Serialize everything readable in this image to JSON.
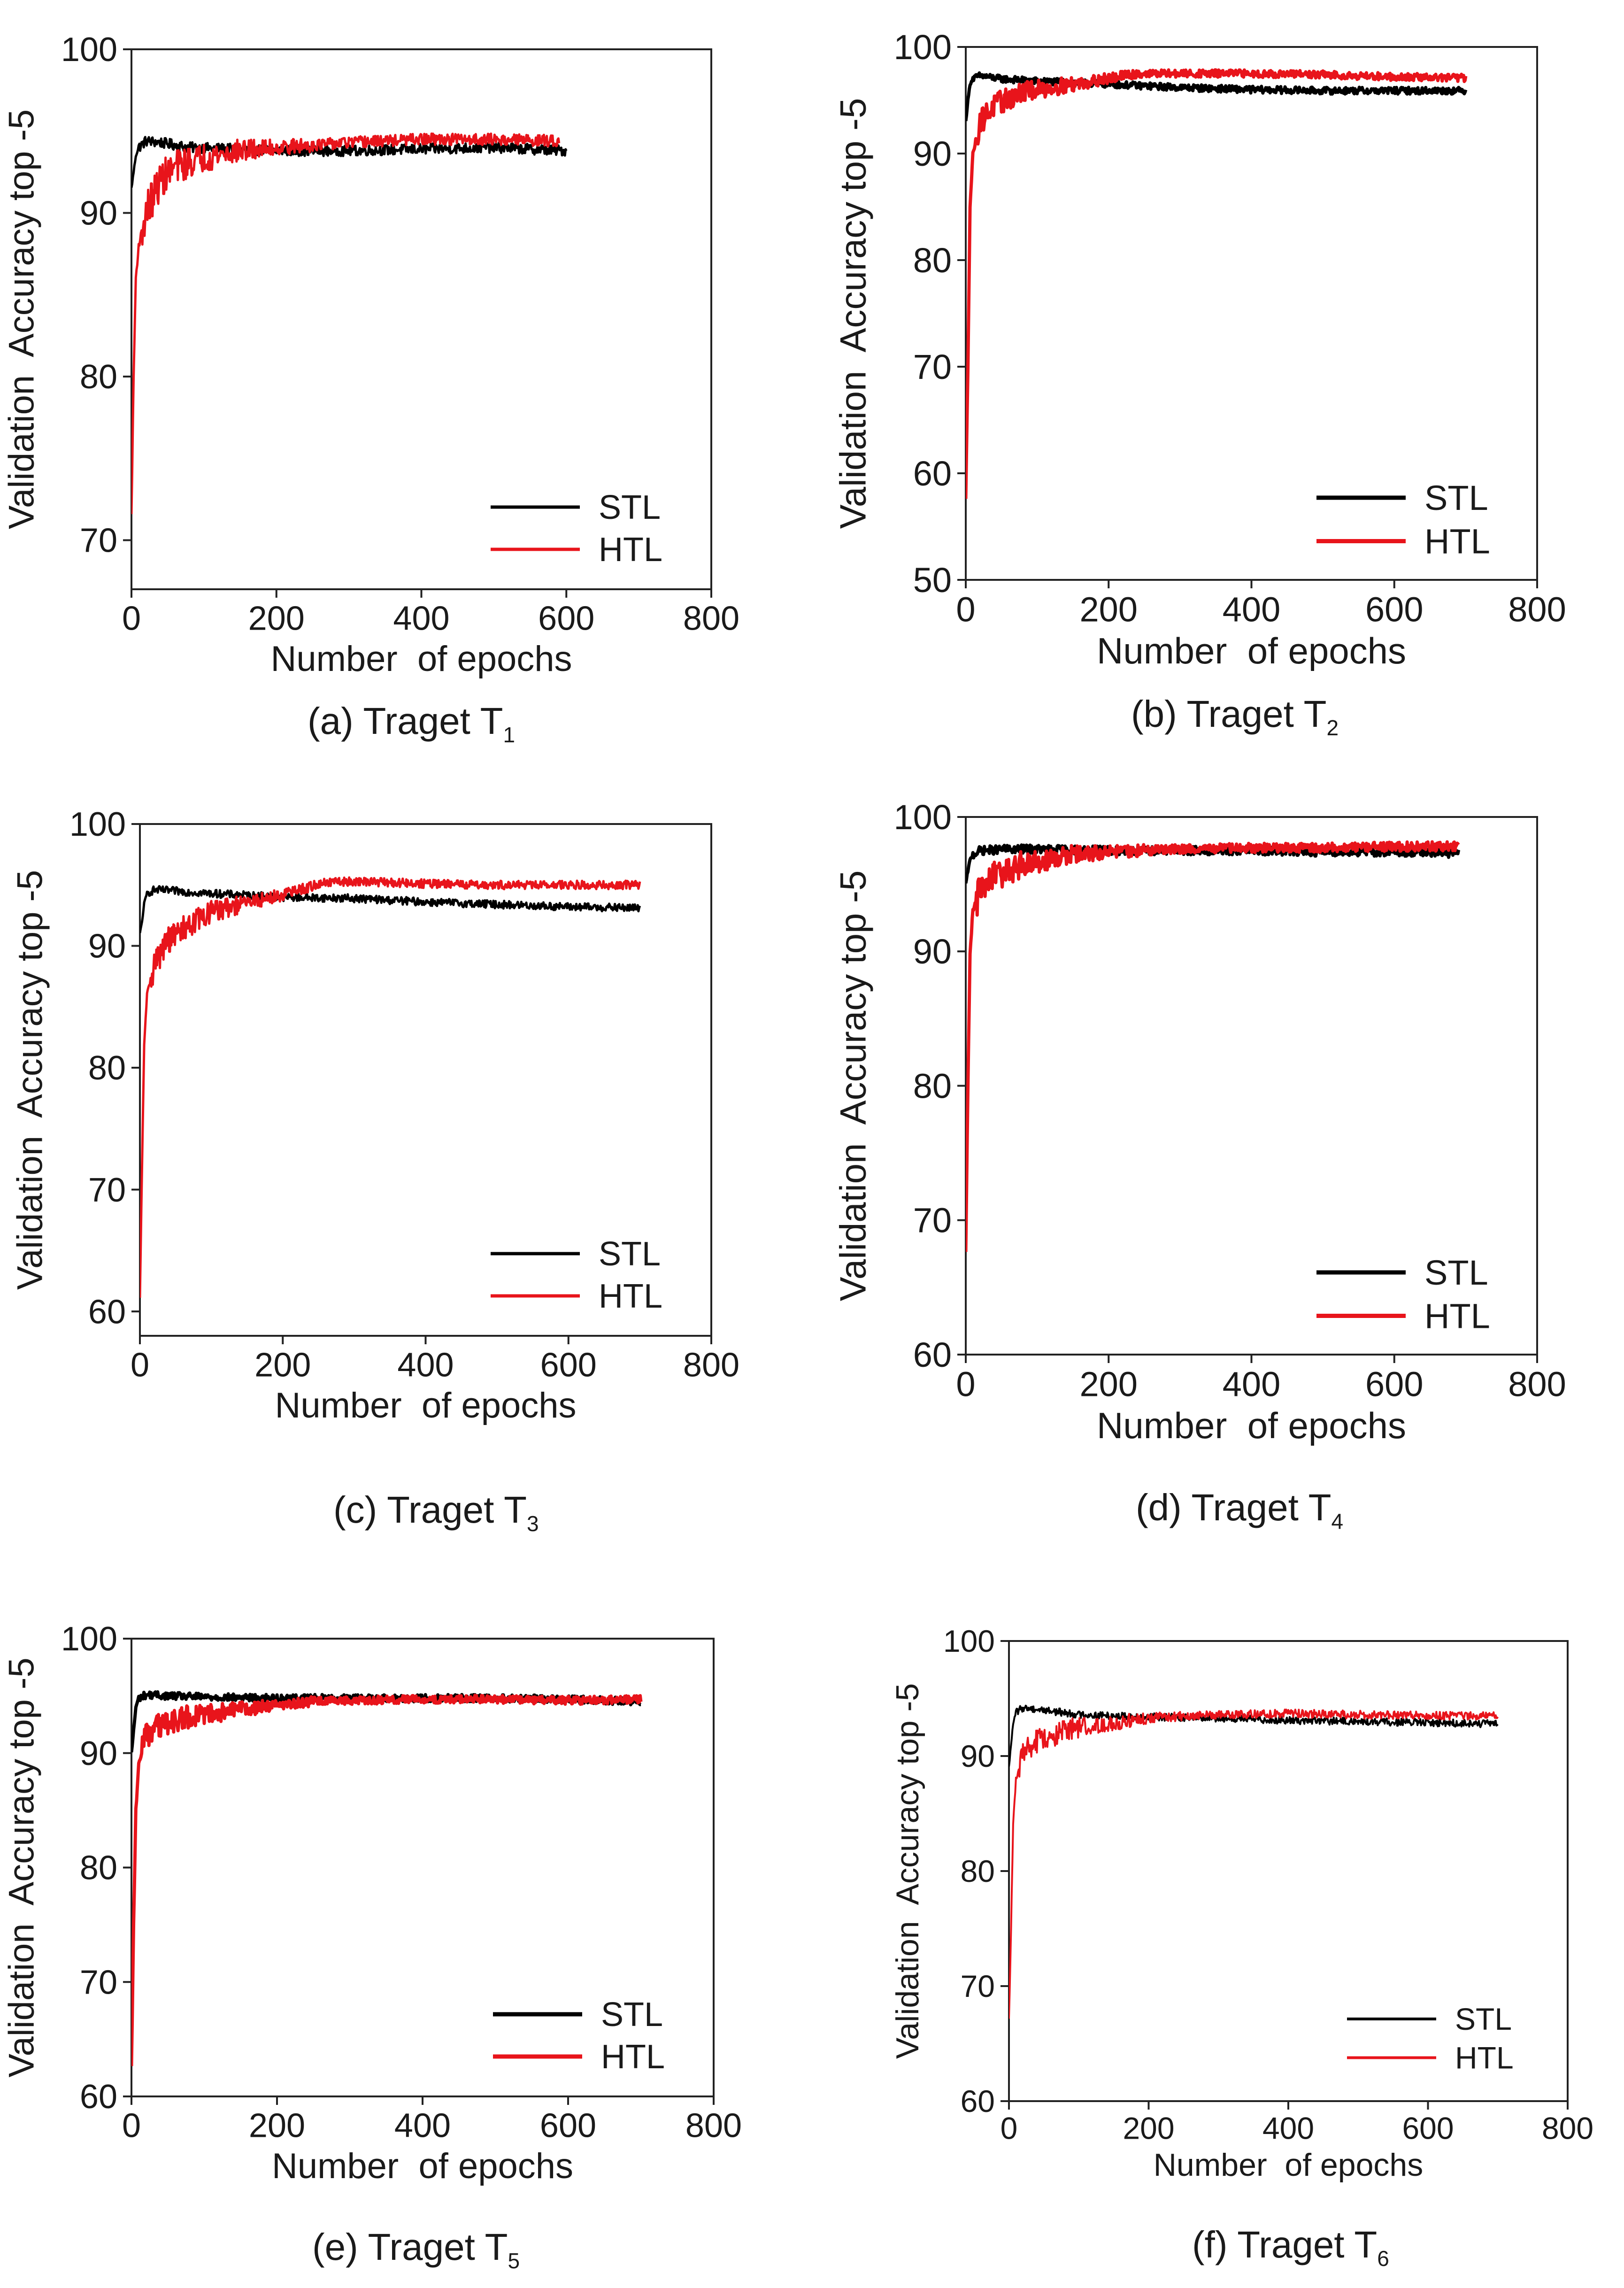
{
  "figure": {
    "colors": {
      "stl": "#000000",
      "htl": "#e8141b"
    }
  },
  "chart_data": [
    {
      "id": "a",
      "type": "line",
      "title": "(a) Traget T",
      "title_subscript": "1",
      "xlabel": "Number  of epochs",
      "ylabel": "Validation  Accuracy top -5",
      "xlim": [
        0,
        800
      ],
      "ylim": [
        67,
        100
      ],
      "xticks": [
        0,
        200,
        400,
        600,
        800
      ],
      "yticks": [
        70,
        80,
        90,
        100
      ],
      "legend": {
        "position": "bottom-right",
        "entries": [
          "STL",
          "HTL"
        ]
      },
      "series": [
        {
          "name": "STL",
          "points": [
            [
              0,
              91.5
            ],
            [
              3,
              92.5
            ],
            [
              6,
              93.5
            ],
            [
              10,
              94
            ],
            [
              20,
              94.4
            ],
            [
              40,
              94.3
            ],
            [
              80,
              94
            ],
            [
              140,
              93.9
            ],
            [
              220,
              93.8
            ],
            [
              300,
              93.8
            ],
            [
              400,
              93.9
            ],
            [
              500,
              94
            ],
            [
              600,
              93.8
            ]
          ]
        },
        {
          "name": "HTL",
          "points": [
            [
              0,
              71.5
            ],
            [
              3,
              80
            ],
            [
              6,
              86
            ],
            [
              10,
              88
            ],
            [
              20,
              90
            ],
            [
              40,
              92
            ],
            [
              60,
              92.8
            ],
            [
              100,
              93.4
            ],
            [
              150,
              93.8
            ],
            [
              200,
              94
            ],
            [
              300,
              94.3
            ],
            [
              400,
              94.5
            ],
            [
              500,
              94.5
            ],
            [
              590,
              94.4
            ]
          ]
        }
      ]
    },
    {
      "id": "b",
      "type": "line",
      "title": "(b) Traget T",
      "title_subscript": "2",
      "xlabel": "Number  of epochs",
      "ylabel": "Validation  Accuracy top -5",
      "xlim": [
        0,
        800
      ],
      "ylim": [
        50,
        100
      ],
      "xticks": [
        0,
        200,
        400,
        600,
        800
      ],
      "yticks": [
        50,
        60,
        70,
        80,
        90,
        100
      ],
      "legend": {
        "position": "bottom-right",
        "entries": [
          "STL",
          "HTL"
        ]
      },
      "series": [
        {
          "name": "STL",
          "points": [
            [
              0,
              93
            ],
            [
              3,
              95
            ],
            [
              6,
              96.5
            ],
            [
              10,
              97
            ],
            [
              20,
              97.3
            ],
            [
              50,
              97
            ],
            [
              100,
              96.8
            ],
            [
              200,
              96.5
            ],
            [
              300,
              96.2
            ],
            [
              400,
              96
            ],
            [
              500,
              95.9
            ],
            [
              600,
              95.9
            ],
            [
              700,
              95.9
            ]
          ]
        },
        {
          "name": "HTL",
          "points": [
            [
              0,
              57.5
            ],
            [
              3,
              70
            ],
            [
              6,
              85
            ],
            [
              10,
              90
            ],
            [
              20,
              93
            ],
            [
              40,
              94.5
            ],
            [
              80,
              95.8
            ],
            [
              150,
              96.5
            ],
            [
              240,
              97.5
            ],
            [
              300,
              97.5
            ],
            [
              400,
              97.5
            ],
            [
              500,
              97.4
            ],
            [
              600,
              97.2
            ],
            [
              700,
              97.1
            ]
          ]
        }
      ]
    },
    {
      "id": "c",
      "type": "line",
      "title": "(c) Traget T",
      "title_subscript": "3",
      "xlabel": "Number  of epochs",
      "ylabel": "Validation  Accuracy top -5",
      "xlim": [
        0,
        800
      ],
      "ylim": [
        58,
        100
      ],
      "xticks": [
        0,
        200,
        400,
        600,
        800
      ],
      "yticks": [
        60,
        70,
        80,
        90,
        100
      ],
      "legend": {
        "position": "bottom-right",
        "entries": [
          "STL",
          "HTL"
        ]
      },
      "series": [
        {
          "name": "STL",
          "points": [
            [
              0,
              91
            ],
            [
              3,
              92
            ],
            [
              6,
              93.5
            ],
            [
              10,
              94.3
            ],
            [
              20,
              94.6
            ],
            [
              50,
              94.5
            ],
            [
              100,
              94.3
            ],
            [
              200,
              94
            ],
            [
              300,
              93.9
            ],
            [
              400,
              93.6
            ],
            [
              500,
              93.4
            ],
            [
              600,
              93.2
            ],
            [
              700,
              93.1
            ]
          ]
        },
        {
          "name": "HTL",
          "points": [
            [
              0,
              61
            ],
            [
              3,
              72
            ],
            [
              6,
              82
            ],
            [
              10,
              86
            ],
            [
              20,
              88.5
            ],
            [
              40,
              90.5
            ],
            [
              70,
              91.8
            ],
            [
              100,
              92.8
            ],
            [
              150,
              93.5
            ],
            [
              200,
              94.2
            ],
            [
              260,
              95.2
            ],
            [
              300,
              95.3
            ],
            [
              400,
              95.1
            ],
            [
              500,
              95
            ],
            [
              600,
              95
            ],
            [
              700,
              95
            ]
          ]
        }
      ]
    },
    {
      "id": "d",
      "type": "line",
      "title": "(d) Traget T",
      "title_subscript": "4",
      "xlabel": "Number  of epochs",
      "ylabel": "Validation  Accuracy top -5",
      "xlim": [
        0,
        800
      ],
      "ylim": [
        60,
        100
      ],
      "xticks": [
        0,
        200,
        400,
        600,
        800
      ],
      "yticks": [
        60,
        70,
        80,
        90,
        100
      ],
      "legend": {
        "position": "bottom-right",
        "entries": [
          "STL",
          "HTL"
        ]
      },
      "series": [
        {
          "name": "STL",
          "points": [
            [
              0,
              95
            ],
            [
              3,
              96
            ],
            [
              6,
              96.8
            ],
            [
              10,
              97.2
            ],
            [
              20,
              97.5
            ],
            [
              60,
              97.6
            ],
            [
              100,
              97.6
            ],
            [
              200,
              97.5
            ],
            [
              300,
              97.5
            ],
            [
              400,
              97.5
            ],
            [
              500,
              97.4
            ],
            [
              600,
              97.4
            ],
            [
              690,
              97.3
            ]
          ]
        },
        {
          "name": "HTL",
          "points": [
            [
              0,
              67.5
            ],
            [
              3,
              80
            ],
            [
              6,
              90
            ],
            [
              10,
              93
            ],
            [
              20,
              94.5
            ],
            [
              40,
              95.5
            ],
            [
              80,
              96.5
            ],
            [
              150,
              97.2
            ],
            [
              200,
              97.4
            ],
            [
              300,
              97.6
            ],
            [
              400,
              97.7
            ],
            [
              500,
              97.7
            ],
            [
              600,
              97.8
            ],
            [
              690,
              97.8
            ]
          ]
        }
      ]
    },
    {
      "id": "e",
      "type": "line",
      "title": "(e) Traget T",
      "title_subscript": "5",
      "xlabel": "Number  of epochs",
      "ylabel": "Validation  Accuracy top -5",
      "xlim": [
        0,
        800
      ],
      "ylim": [
        60,
        100
      ],
      "xticks": [
        0,
        200,
        400,
        600,
        800
      ],
      "yticks": [
        60,
        70,
        80,
        90,
        100
      ],
      "legend": {
        "position": "bottom-right",
        "entries": [
          "STL",
          "HTL"
        ]
      },
      "series": [
        {
          "name": "STL",
          "points": [
            [
              0,
              90
            ],
            [
              3,
              92
            ],
            [
              6,
              94
            ],
            [
              10,
              94.8
            ],
            [
              20,
              95.1
            ],
            [
              50,
              95
            ],
            [
              100,
              94.9
            ],
            [
              200,
              94.8
            ],
            [
              300,
              94.8
            ],
            [
              400,
              94.8
            ],
            [
              500,
              94.8
            ],
            [
              600,
              94.7
            ],
            [
              700,
              94.5
            ]
          ]
        },
        {
          "name": "HTL",
          "points": [
            [
              0,
              62.5
            ],
            [
              3,
              75
            ],
            [
              6,
              85
            ],
            [
              10,
              89
            ],
            [
              20,
              91.5
            ],
            [
              40,
              92.5
            ],
            [
              80,
              93.2
            ],
            [
              150,
              93.8
            ],
            [
              200,
              94.2
            ],
            [
              260,
              94.6
            ],
            [
              300,
              94.6
            ],
            [
              400,
              94.7
            ],
            [
              500,
              94.7
            ],
            [
              600,
              94.6
            ],
            [
              700,
              94.7
            ]
          ]
        }
      ]
    },
    {
      "id": "f",
      "type": "line",
      "title": "(f) Traget T",
      "title_subscript": "6",
      "xlabel": "Number  of epochs",
      "ylabel": "Validation  Accuracy top -5",
      "xlim": [
        0,
        800
      ],
      "ylim": [
        60,
        100
      ],
      "xticks": [
        0,
        200,
        400,
        600,
        800
      ],
      "yticks": [
        60,
        70,
        80,
        90,
        100
      ],
      "legend": {
        "position": "bottom-right",
        "entries": [
          "STL",
          "HTL"
        ]
      },
      "series": [
        {
          "name": "STL",
          "points": [
            [
              0,
              89
            ],
            [
              3,
              91
            ],
            [
              6,
              92.8
            ],
            [
              10,
              93.8
            ],
            [
              20,
              94.2
            ],
            [
              50,
              94
            ],
            [
              100,
              93.6
            ],
            [
              200,
              93.4
            ],
            [
              300,
              93.3
            ],
            [
              400,
              93.1
            ],
            [
              500,
              93
            ],
            [
              600,
              92.9
            ],
            [
              700,
              92.8
            ]
          ]
        },
        {
          "name": "HTL",
          "points": [
            [
              0,
              67
            ],
            [
              3,
              75
            ],
            [
              6,
              84
            ],
            [
              10,
              88
            ],
            [
              20,
              90
            ],
            [
              40,
              91.2
            ],
            [
              80,
              92.3
            ],
            [
              150,
              92.9
            ],
            [
              200,
              93.3
            ],
            [
              300,
              93.6
            ],
            [
              400,
              93.7
            ],
            [
              500,
              93.6
            ],
            [
              600,
              93.5
            ],
            [
              700,
              93.5
            ]
          ]
        }
      ]
    }
  ]
}
